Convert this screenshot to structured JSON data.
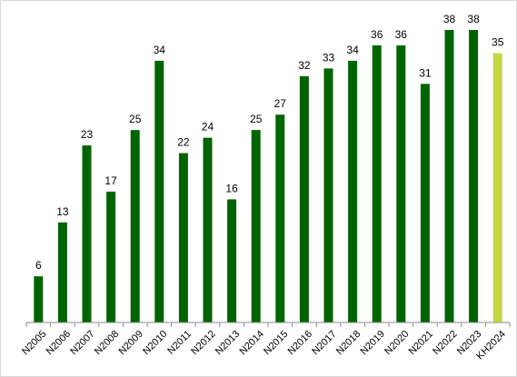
{
  "chart_data": {
    "type": "bar",
    "categories": [
      "N2005",
      "N2006",
      "N2007",
      "N2008",
      "N2009",
      "N2010",
      "N2011",
      "N2012",
      "N2013",
      "N2014",
      "N2015",
      "N2016",
      "N2017",
      "N2018",
      "N2019",
      "N2020",
      "N2021",
      "N2022",
      "N2023",
      "KH2024"
    ],
    "values": [
      6,
      13,
      23,
      17,
      25,
      34,
      22,
      24,
      16,
      25,
      27,
      32,
      33,
      34,
      36,
      36,
      31,
      38,
      38,
      35
    ],
    "title": "",
    "xlabel": "",
    "ylabel": "",
    "ylim": [
      0,
      38
    ],
    "grid": false,
    "legend": "none",
    "data_labels": true,
    "colors": {
      "actual": "#006400",
      "plan": "#c8d645",
      "axis": "#8c8c8c"
    },
    "highlight_category": "KH2024"
  }
}
